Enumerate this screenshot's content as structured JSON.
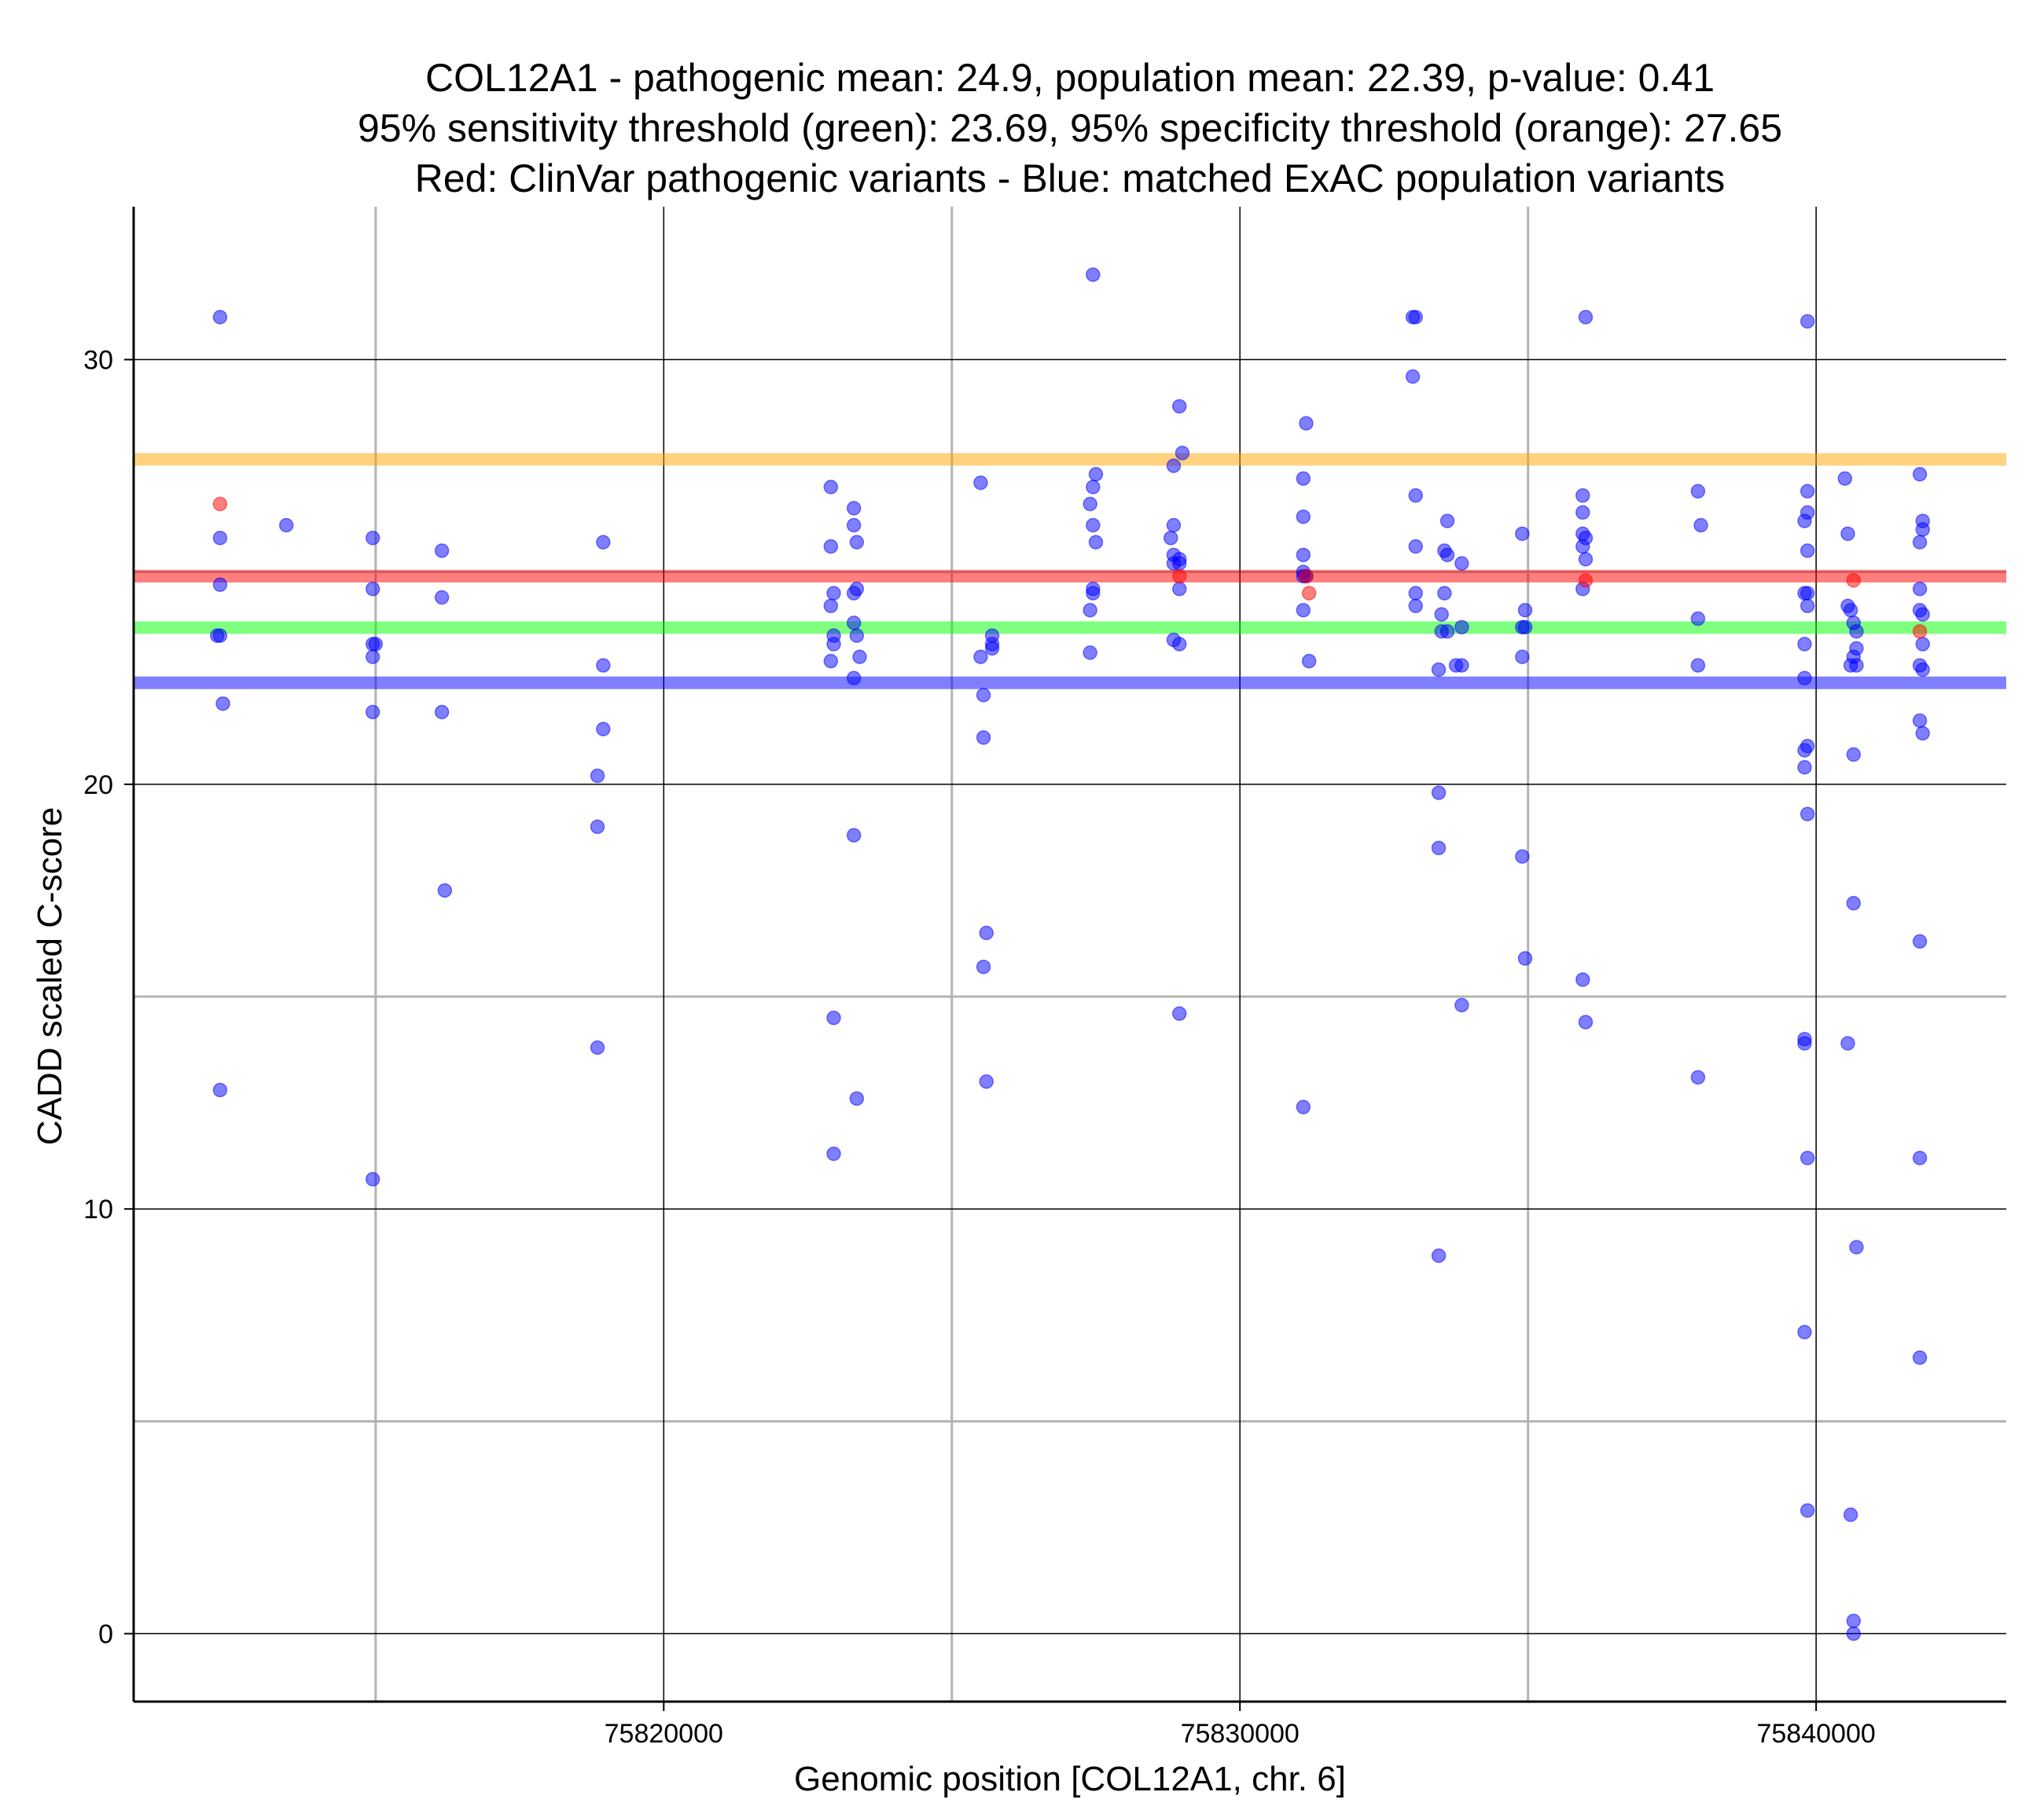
{
  "chart_data": {
    "type": "scatter",
    "title_lines": [
      "COL12A1 - pathogenic mean: 24.9, population mean: 22.39, p-value: 0.41",
      "95% sensitivity threshold (green): 23.69, 95% specificity threshold (orange): 27.65",
      "Red: ClinVar pathogenic variants - Blue: matched ExAC population variants"
    ],
    "xlabel": "Genomic position [COL12A1, chr. 6]",
    "ylabel": "CADD scaled C-score",
    "xlim": [
      75810800,
      75843300
    ],
    "ylim": [
      -1.6,
      33.6
    ],
    "x_ticks": [
      75820000,
      75830000,
      75840000
    ],
    "x_tick_labels": [
      "75820000",
      "75830000",
      "75840000"
    ],
    "y_ticks": [
      0,
      10,
      20,
      30
    ],
    "y_tick_labels": [
      "0",
      "10",
      "20",
      "30"
    ],
    "x_minor_grid": [
      75815000,
      75825000,
      75835000
    ],
    "y_minor_grid": [
      5,
      15,
      25
    ],
    "grid": true,
    "hlines": [
      {
        "value": 27.65,
        "color": "#FFA500",
        "meaning": "95% specificity threshold"
      },
      {
        "value": 24.9,
        "color": "#FF0000",
        "meaning": "pathogenic mean"
      },
      {
        "value": 23.69,
        "color": "#00FF00",
        "meaning": "95% sensitivity threshold"
      },
      {
        "value": 22.39,
        "color": "#0000FF",
        "meaning": "population mean"
      }
    ],
    "series": [
      {
        "color": "#0000FF",
        "points": [
          [
            75812300,
            31
          ],
          [
            75812300,
            25.8
          ],
          [
            75812300,
            24.7
          ],
          [
            75812250,
            23.5
          ],
          [
            75812300,
            23.5
          ],
          [
            75812350,
            21.9
          ],
          [
            75812300,
            12.8
          ],
          [
            75813450,
            26.1
          ],
          [
            75814950,
            25.8
          ],
          [
            75814950,
            24.6
          ],
          [
            75814950,
            23.3
          ],
          [
            75815000,
            23.3
          ],
          [
            75814950,
            23
          ],
          [
            75814950,
            21.7
          ],
          [
            75814950,
            10.7
          ],
          [
            75816150,
            25.5
          ],
          [
            75816150,
            24.4
          ],
          [
            75816150,
            21.7
          ],
          [
            75816200,
            17.5
          ],
          [
            75818850,
            20.2
          ],
          [
            75818850,
            19
          ],
          [
            75818850,
            13.8
          ],
          [
            75818950,
            25.7
          ],
          [
            75818950,
            22.8
          ],
          [
            75818950,
            21.3
          ],
          [
            75822900,
            27
          ],
          [
            75822900,
            25.6
          ],
          [
            75822900,
            24.2
          ],
          [
            75822950,
            24.5
          ],
          [
            75822950,
            23.5
          ],
          [
            75822950,
            23.3
          ],
          [
            75822900,
            22.9
          ],
          [
            75822950,
            14.5
          ],
          [
            75822950,
            11.3
          ],
          [
            75823300,
            26.5
          ],
          [
            75823300,
            26.1
          ],
          [
            75823350,
            25.7
          ],
          [
            75823350,
            24.6
          ],
          [
            75823300,
            24.5
          ],
          [
            75823300,
            23.8
          ],
          [
            75823350,
            23.5
          ],
          [
            75823400,
            23
          ],
          [
            75823300,
            22.5
          ],
          [
            75823300,
            18.8
          ],
          [
            75823350,
            12.6
          ],
          [
            75825500,
            27.1
          ],
          [
            75825500,
            23
          ],
          [
            75825550,
            22.1
          ],
          [
            75825550,
            21.1
          ],
          [
            75825600,
            16.5
          ],
          [
            75825550,
            15.7
          ],
          [
            75825600,
            13
          ],
          [
            75825700,
            23.5
          ],
          [
            75825700,
            23.3
          ],
          [
            75825700,
            23.2
          ],
          [
            75827450,
            32
          ],
          [
            75827400,
            26.6
          ],
          [
            75827450,
            27
          ],
          [
            75827450,
            26.1
          ],
          [
            75827500,
            25.7
          ],
          [
            75827450,
            24.6
          ],
          [
            75827450,
            24.5
          ],
          [
            75827400,
            24.1
          ],
          [
            75827400,
            23.1
          ],
          [
            75827500,
            27.3
          ],
          [
            75828950,
            28.9
          ],
          [
            75829000,
            27.8
          ],
          [
            75828850,
            27.5
          ],
          [
            75828850,
            26.1
          ],
          [
            75828800,
            25.8
          ],
          [
            75828850,
            25.4
          ],
          [
            75828850,
            25.2
          ],
          [
            75828950,
            25.3
          ],
          [
            75828950,
            25.2
          ],
          [
            75828950,
            24.6
          ],
          [
            75828850,
            23.4
          ],
          [
            75828950,
            23.3
          ],
          [
            75828950,
            14.6
          ],
          [
            75831150,
            28.5
          ],
          [
            75831100,
            27.2
          ],
          [
            75831100,
            26.3
          ],
          [
            75831100,
            25.4
          ],
          [
            75831100,
            25
          ],
          [
            75831100,
            24.9
          ],
          [
            75831150,
            24.9
          ],
          [
            75831100,
            24.1
          ],
          [
            75831200,
            22.9
          ],
          [
            75831100,
            12.4
          ],
          [
            75833000,
            31
          ],
          [
            75833050,
            31
          ],
          [
            75833000,
            29.6
          ],
          [
            75833050,
            26.8
          ],
          [
            75833050,
            25.6
          ],
          [
            75833050,
            24.5
          ],
          [
            75833050,
            24.2
          ],
          [
            75833600,
            26.2
          ],
          [
            75833550,
            25.5
          ],
          [
            75833600,
            25.4
          ],
          [
            75833850,
            25.2
          ],
          [
            75833550,
            24.5
          ],
          [
            75833500,
            24
          ],
          [
            75833500,
            23.6
          ],
          [
            75833600,
            23.6
          ],
          [
            75833850,
            23.7
          ],
          [
            75833750,
            22.8
          ],
          [
            75833850,
            22.8
          ],
          [
            75833450,
            22.7
          ],
          [
            75833450,
            19.8
          ],
          [
            75833450,
            18.5
          ],
          [
            75833850,
            14.8
          ],
          [
            75833450,
            8.9
          ],
          [
            75834900,
            25.9
          ],
          [
            75834950,
            24.1
          ],
          [
            75834900,
            23.7
          ],
          [
            75834950,
            23.7
          ],
          [
            75834900,
            23
          ],
          [
            75834900,
            18.3
          ],
          [
            75834950,
            15.9
          ],
          [
            75836000,
            31
          ],
          [
            75835950,
            26.8
          ],
          [
            75835950,
            26.4
          ],
          [
            75835950,
            25.9
          ],
          [
            75836000,
            25.8
          ],
          [
            75835950,
            25.6
          ],
          [
            75836000,
            25.3
          ],
          [
            75835950,
            24.6
          ],
          [
            75835950,
            15.4
          ],
          [
            75836000,
            14.4
          ],
          [
            75837950,
            26.9
          ],
          [
            75838000,
            26.1
          ],
          [
            75837950,
            23.9
          ],
          [
            75837950,
            22.8
          ],
          [
            75837950,
            13.1
          ],
          [
            75839850,
            30.9
          ],
          [
            75839850,
            26.9
          ],
          [
            75839850,
            26.4
          ],
          [
            75839800,
            26.2
          ],
          [
            75839850,
            25.5
          ],
          [
            75839800,
            24.5
          ],
          [
            75839850,
            24.5
          ],
          [
            75839850,
            24.2
          ],
          [
            75839800,
            23.3
          ],
          [
            75839800,
            22.5
          ],
          [
            75839850,
            20.9
          ],
          [
            75839800,
            20.8
          ],
          [
            75839800,
            20.4
          ],
          [
            75839850,
            19.3
          ],
          [
            75839800,
            14
          ],
          [
            75839800,
            13.9
          ],
          [
            75839850,
            11.2
          ],
          [
            75839800,
            7.1
          ],
          [
            75839850,
            2.9
          ],
          [
            75840500,
            27.2
          ],
          [
            75840550,
            25.9
          ],
          [
            75840550,
            24.2
          ],
          [
            75840600,
            24.1
          ],
          [
            75840650,
            23.8
          ],
          [
            75840700,
            23.6
          ],
          [
            75840700,
            23.2
          ],
          [
            75840650,
            23
          ],
          [
            75840600,
            22.8
          ],
          [
            75840700,
            22.8
          ],
          [
            75840650,
            20.7
          ],
          [
            75840650,
            17.2
          ],
          [
            75840550,
            13.9
          ],
          [
            75840700,
            9.1
          ],
          [
            75840600,
            2.8
          ],
          [
            75840650,
            0.3
          ],
          [
            75840650,
            0
          ],
          [
            75841800,
            27.3
          ],
          [
            75841850,
            26.2
          ],
          [
            75841850,
            26
          ],
          [
            75841800,
            25.7
          ],
          [
            75841800,
            24.6
          ],
          [
            75841800,
            24.1
          ],
          [
            75841850,
            24
          ],
          [
            75841800,
            22.8
          ],
          [
            75841850,
            22.7
          ],
          [
            75841850,
            23.3
          ],
          [
            75841800,
            21.5
          ],
          [
            75841850,
            21.2
          ],
          [
            75841800,
            16.3
          ],
          [
            75841800,
            11.2
          ],
          [
            75841800,
            6.5
          ]
        ]
      },
      {
        "color": "#FF0000",
        "points": [
          [
            75812300,
            26.6
          ],
          [
            75828950,
            24.9
          ],
          [
            75831150,
            24.9
          ],
          [
            75831200,
            24.5
          ],
          [
            75836000,
            24.8
          ],
          [
            75840650,
            24.8
          ],
          [
            75841800,
            23.6
          ]
        ]
      }
    ]
  }
}
